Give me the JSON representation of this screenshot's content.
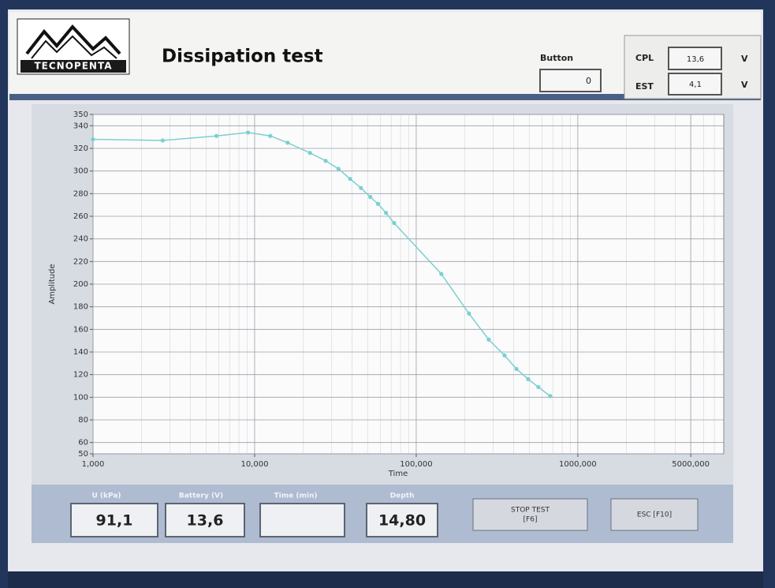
{
  "header": {
    "logo": "TECNOPENTA",
    "title": "Dissipation test"
  },
  "status": {
    "button_label": "Button",
    "button_value": "0",
    "cpl_label": "CPL",
    "cpl_value": "13,6",
    "cpl_unit": "V",
    "est_label": "EST",
    "est_value": "4,1",
    "est_unit": "V"
  },
  "chart_data": {
    "type": "line",
    "x_label": "Time",
    "y_label": "Amplitude",
    "log_x": true,
    "grid": true,
    "color": "#7ccfd0",
    "x": [
      1000,
      2700,
      5800,
      9100,
      12500,
      16000,
      22000,
      27500,
      33000,
      39000,
      45500,
      52000,
      58000,
      65000,
      73000,
      143000,
      212000,
      281000,
      352000,
      417000,
      493000,
      570000,
      675000
    ],
    "values": [
      328,
      327,
      331,
      334,
      331,
      325,
      316,
      309,
      302,
      293,
      285,
      277,
      271,
      263,
      254,
      209,
      174,
      151,
      137,
      125,
      116,
      109,
      101
    ],
    "xlim": [
      1000,
      8000000
    ],
    "xticks": [
      {
        "value": 1000,
        "label": "1,000"
      },
      {
        "value": 10000,
        "label": "10,000"
      },
      {
        "value": 100000,
        "label": "100,000"
      },
      {
        "value": 1000000,
        "label": "1000,000"
      },
      {
        "value": 5000000,
        "label": "5000,000"
      }
    ],
    "ylim": [
      50,
      350
    ],
    "yticks": [
      50,
      60,
      80,
      100,
      120,
      140,
      160,
      180,
      200,
      220,
      240,
      260,
      280,
      300,
      320,
      340,
      350
    ]
  },
  "readouts": [
    {
      "label": "U (kPa)",
      "value": "91,1"
    },
    {
      "label": "Battery (V)",
      "value": "13,6"
    },
    {
      "label": "Time (min)"
    },
    {
      "label": "Depth",
      "value": "14,80"
    }
  ],
  "buttons": [
    [
      "STOP TEST",
      "[F6]"
    ],
    [
      "ESC [F10]"
    ]
  ]
}
